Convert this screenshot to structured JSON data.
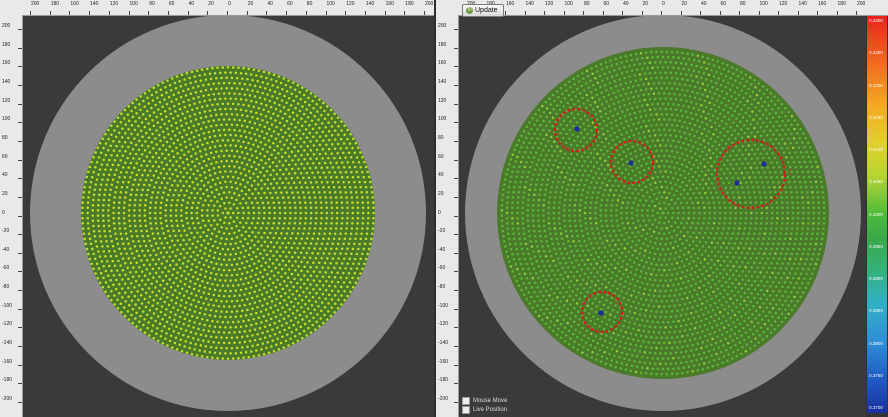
{
  "rulers": {
    "top_labels": [
      "200",
      "180",
      "160",
      "140",
      "120",
      "100",
      "80",
      "60",
      "40",
      "20",
      "0",
      "20",
      "40",
      "60",
      "80",
      "100",
      "120",
      "140",
      "160",
      "180",
      "200"
    ],
    "left_labels": [
      "200",
      "180",
      "160",
      "140",
      "120",
      "100",
      "80",
      "60",
      "40",
      "20",
      "0",
      "-20",
      "-40",
      "-60",
      "-80",
      "-100",
      "-120",
      "-140",
      "-160",
      "-180",
      "-200"
    ]
  },
  "toolbar": {
    "update_label": "Update"
  },
  "colorbar": {
    "labels": [
      "0.4300",
      "0.4250",
      "0.4200",
      "0.4150",
      "0.4100",
      "0.4050",
      "0.4000",
      "0.3950",
      "0.3900",
      "0.3850",
      "0.3800",
      "0.3750",
      "0.3700"
    ],
    "colors": [
      "#e8221c",
      "#f5a623",
      "#e2d12b",
      "#4dbb3a",
      "#2fb2c4",
      "#1f57c4"
    ]
  },
  "options": {
    "mouse_move_label": "Mouse Move",
    "live_position_label": "Live Position"
  },
  "wafer": {
    "left_dot_color": "#c8e02a",
    "right_dot_color": "#5cb83a",
    "edge_color": "#8c8c8c",
    "highlight_circle_color": "#d41c1c",
    "defect_dot_color": "#1c2a9a",
    "defect_count": 5,
    "highlight_count": 4
  }
}
